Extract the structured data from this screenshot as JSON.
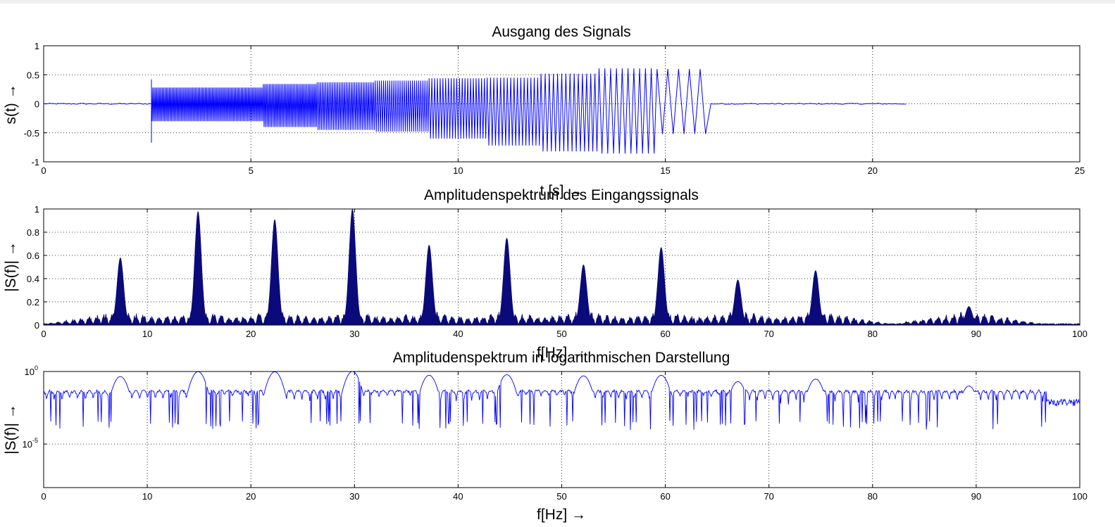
{
  "colors": {
    "figure_background": "#f0f0f0",
    "axes_background": "#ffffff",
    "signal_line": "#0000ff",
    "spectrum_fill": "#0a0a7a",
    "log_line": "#0000ff"
  },
  "chart_data": [
    {
      "id": "time",
      "type": "line",
      "title": "Ausgang des Signals",
      "xlabel": "t [s] →",
      "ylabel": "s(t) →",
      "xlim": [
        0,
        25
      ],
      "ylim": [
        -1,
        1
      ],
      "grid": true,
      "xticks": [
        0,
        5,
        10,
        15,
        20,
        25
      ],
      "xtick_labels": [
        "0",
        "5",
        "10",
        "15",
        "20",
        "25"
      ],
      "yticks": [
        -1,
        -0.5,
        0,
        0.5,
        1
      ],
      "ytick_labels": [
        "-1",
        "-0.5",
        "0",
        "0.5",
        "1"
      ],
      "series": [
        {
          "color": "#0000ff",
          "envelope_segments": [
            {
              "t0": 0.0,
              "t1": 2.6,
              "freq_hz": 0,
              "upper": 0.01,
              "lower": -0.01
            },
            {
              "t0": 2.6,
              "t1": 5.3,
              "freq_hz": 30,
              "upper": 0.28,
              "lower": -0.3
            },
            {
              "t0": 5.3,
              "t1": 6.6,
              "freq_hz": 28,
              "upper": 0.34,
              "lower": -0.4
            },
            {
              "t0": 6.6,
              "t1": 8.0,
              "freq_hz": 24,
              "upper": 0.37,
              "lower": -0.45
            },
            {
              "t0": 8.0,
              "t1": 9.3,
              "freq_hz": 20,
              "upper": 0.4,
              "lower": -0.48
            },
            {
              "t0": 9.3,
              "t1": 10.7,
              "freq_hz": 15,
              "upper": 0.44,
              "lower": -0.6
            },
            {
              "t0": 10.7,
              "t1": 12.0,
              "freq_hz": 12,
              "upper": 0.45,
              "lower": -0.72
            },
            {
              "t0": 12.0,
              "t1": 13.4,
              "freq_hz": 10,
              "upper": 0.52,
              "lower": -0.82
            },
            {
              "t0": 13.4,
              "t1": 14.8,
              "freq_hz": 7,
              "upper": 0.61,
              "lower": -0.86
            },
            {
              "t0": 14.8,
              "t1": 16.1,
              "freq_hz": 4,
              "upper": 0.6,
              "lower": -0.52
            },
            {
              "t0": 16.1,
              "t1": 20.8,
              "freq_hz": 0,
              "upper": 0.01,
              "lower": -0.01
            }
          ],
          "spike": {
            "t": 2.6,
            "max": 0.42,
            "min": -0.67
          }
        }
      ]
    },
    {
      "id": "spectrum",
      "type": "area",
      "title": "Amplitudenspektrum des Eingangssignals",
      "xlabel": "f[Hz] →",
      "ylabel": "|S(f)| →",
      "xlim": [
        0,
        100
      ],
      "ylim": [
        0,
        1
      ],
      "grid": true,
      "xticks": [
        0,
        10,
        20,
        30,
        40,
        50,
        60,
        70,
        80,
        90,
        100
      ],
      "xtick_labels": [
        "0",
        "10",
        "20",
        "30",
        "40",
        "50",
        "60",
        "70",
        "80",
        "90",
        "100"
      ],
      "yticks": [
        0,
        0.2,
        0.4,
        0.6,
        0.8,
        1
      ],
      "ytick_labels": [
        "0",
        "0.2",
        "0.4",
        "0.6",
        "0.8",
        "1"
      ],
      "series": [
        {
          "color": "#0a0a7a",
          "peaks": [
            {
              "f": 7.4,
              "amp": 0.58
            },
            {
              "f": 14.9,
              "amp": 0.98
            },
            {
              "f": 22.3,
              "amp": 0.91
            },
            {
              "f": 29.8,
              "amp": 1.0
            },
            {
              "f": 37.2,
              "amp": 0.69
            },
            {
              "f": 44.7,
              "amp": 0.75
            },
            {
              "f": 52.1,
              "amp": 0.52
            },
            {
              "f": 59.6,
              "amp": 0.67
            },
            {
              "f": 67.0,
              "amp": 0.39
            },
            {
              "f": 74.5,
              "amp": 0.47
            },
            {
              "f": 89.3,
              "amp": 0.16
            }
          ],
          "sidelobe_level": 0.1,
          "floor_level": 0.01
        }
      ]
    },
    {
      "id": "logspectrum",
      "type": "line",
      "title": "Amplitudenspektrum in logarithmischen Darstellung",
      "xlabel": "f[Hz] →",
      "ylabel": "|S(f)| →",
      "xlim": [
        0,
        100
      ],
      "ylim": [
        1e-08,
        1
      ],
      "yscale": "log",
      "grid": true,
      "xticks": [
        0,
        10,
        20,
        30,
        40,
        50,
        60,
        70,
        80,
        90,
        100
      ],
      "xtick_labels": [
        "0",
        "10",
        "20",
        "30",
        "40",
        "50",
        "60",
        "70",
        "80",
        "90",
        "100"
      ],
      "yticks": [
        1e-05,
        1
      ],
      "ytick_labels": [
        {
          "base": "10",
          "exp": "-5"
        },
        {
          "base": "10",
          "exp": "0"
        }
      ],
      "series": [
        {
          "color": "#0000ff",
          "peaks": [
            {
              "f": 7.4,
              "amp": 0.45
            },
            {
              "f": 14.9,
              "amp": 0.98
            },
            {
              "f": 22.3,
              "amp": 0.95
            },
            {
              "f": 29.8,
              "amp": 1.0
            },
            {
              "f": 37.2,
              "amp": 0.55
            },
            {
              "f": 44.7,
              "amp": 0.6
            },
            {
              "f": 52.1,
              "amp": 0.5
            },
            {
              "f": 59.6,
              "amp": 0.55
            },
            {
              "f": 67.0,
              "amp": 0.2
            },
            {
              "f": 74.5,
              "amp": 0.3
            },
            {
              "f": 89.3,
              "amp": 0.1
            }
          ],
          "sidelobe_level": 0.05,
          "floor_level": 0.01,
          "dip_level": 0.0003
        }
      ]
    }
  ]
}
